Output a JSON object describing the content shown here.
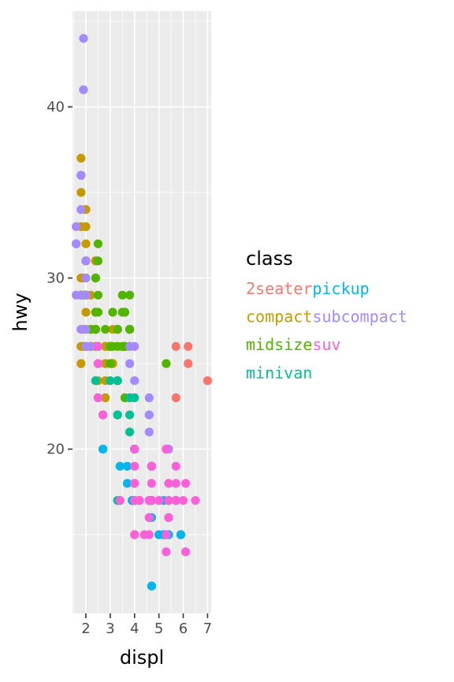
{
  "chart_data": {
    "type": "scatter",
    "title": "",
    "xlabel": "displ",
    "ylabel": "hwy",
    "xlim": [
      1.45,
      7.15
    ],
    "ylim": [
      10.4,
      45.6
    ],
    "x_ticks": [
      2,
      3,
      4,
      5,
      6,
      7
    ],
    "y_ticks": [
      20,
      30,
      40
    ],
    "grid": true,
    "legend": {
      "title": "class",
      "placement": "right",
      "layout": "two labels per line, no space between them",
      "lines": [
        [
          "2seater",
          "pickup"
        ],
        [
          "compact",
          "subcompact"
        ],
        [
          "midsize",
          "suv"
        ],
        [
          "minivan"
        ]
      ]
    },
    "colors": {
      "2seater": "#F8766D",
      "compact": "#C49A00",
      "midsize": "#53B400",
      "minivan": "#00C094",
      "pickup": "#00B6EB",
      "subcompact": "#A58AFF",
      "suv": "#FB61D7"
    },
    "series": [
      {
        "name": "2seater",
        "points": [
          [
            5.7,
            26
          ],
          [
            5.7,
            23
          ],
          [
            6.2,
            26
          ],
          [
            6.2,
            25
          ],
          [
            7.0,
            24
          ]
        ]
      },
      {
        "name": "compact",
        "points": [
          [
            1.8,
            29
          ],
          [
            1.8,
            29
          ],
          [
            2.0,
            31
          ],
          [
            2.0,
            30
          ],
          [
            2.8,
            26
          ],
          [
            2.8,
            26
          ],
          [
            3.1,
            27
          ],
          [
            1.8,
            26
          ],
          [
            1.8,
            25
          ],
          [
            2.0,
            28
          ],
          [
            2.0,
            27
          ],
          [
            2.8,
            25
          ],
          [
            2.8,
            25
          ],
          [
            3.1,
            25
          ],
          [
            3.1,
            25
          ],
          [
            2.2,
            26
          ],
          [
            2.2,
            27
          ],
          [
            2.4,
            31
          ],
          [
            2.4,
            31
          ],
          [
            3.0,
            26
          ],
          [
            3.0,
            26
          ],
          [
            3.3,
            27
          ],
          [
            1.8,
            29
          ],
          [
            1.8,
            29
          ],
          [
            1.8,
            29
          ],
          [
            1.8,
            30
          ],
          [
            2.0,
            33
          ],
          [
            1.9,
            30
          ],
          [
            1.9,
            29
          ],
          [
            2.0,
            29
          ],
          [
            2.0,
            29
          ],
          [
            2.0,
            29
          ],
          [
            2.0,
            29
          ],
          [
            2.5,
            24
          ],
          [
            2.5,
            25
          ],
          [
            2.8,
            23
          ],
          [
            2.8,
            24
          ],
          [
            2.2,
            26
          ],
          [
            2.2,
            29
          ],
          [
            2.4,
            27
          ],
          [
            2.4,
            31
          ],
          [
            3.0,
            26
          ],
          [
            3.0,
            26
          ],
          [
            3.3,
            26
          ],
          [
            3.3,
            27
          ],
          [
            2.2,
            27
          ],
          [
            2.4,
            26
          ],
          [
            2.0,
            26
          ],
          [
            1.9,
            27
          ],
          [
            1.9,
            26
          ],
          [
            1.8,
            37
          ],
          [
            1.8,
            35
          ],
          [
            2.0,
            29
          ],
          [
            2.0,
            29
          ],
          [
            2.0,
            32
          ],
          [
            1.8,
            33
          ],
          [
            1.8,
            36
          ],
          [
            2.0,
            34
          ]
        ]
      },
      {
        "name": "midsize",
        "points": [
          [
            2.4,
            27
          ],
          [
            3.0,
            25
          ],
          [
            3.3,
            26
          ],
          [
            2.4,
            30
          ],
          [
            3.0,
            26
          ],
          [
            3.3,
            24
          ],
          [
            3.8,
            27
          ],
          [
            3.8,
            26
          ],
          [
            3.1,
            28
          ],
          [
            3.8,
            27
          ],
          [
            3.8,
            29
          ],
          [
            3.8,
            27
          ],
          [
            5.3,
            25
          ],
          [
            2.4,
            27
          ],
          [
            2.4,
            30
          ],
          [
            3.1,
            26
          ],
          [
            3.5,
            29
          ],
          [
            3.6,
            26
          ],
          [
            2.4,
            27
          ],
          [
            2.4,
            28
          ],
          [
            2.5,
            31
          ],
          [
            2.5,
            32
          ],
          [
            3.3,
            27
          ],
          [
            3.3,
            27
          ],
          [
            3.5,
            28
          ],
          [
            3.5,
            26
          ],
          [
            2.2,
            26
          ],
          [
            2.2,
            27
          ],
          [
            2.4,
            28
          ],
          [
            2.4,
            27
          ],
          [
            3.0,
            26
          ],
          [
            3.0,
            26
          ],
          [
            3.5,
            26
          ],
          [
            2.5,
            28
          ],
          [
            2.5,
            29
          ],
          [
            2.8,
            27
          ],
          [
            3.6,
            26
          ],
          [
            3.6,
            23
          ],
          [
            3.6,
            28
          ],
          [
            1.8,
            29
          ],
          [
            2.0,
            31
          ]
        ]
      },
      {
        "name": "minivan",
        "points": [
          [
            2.4,
            24
          ],
          [
            3.0,
            24
          ],
          [
            3.3,
            22
          ],
          [
            3.3,
            22
          ],
          [
            3.3,
            24
          ],
          [
            3.3,
            24
          ],
          [
            3.3,
            17
          ],
          [
            3.8,
            22
          ],
          [
            3.8,
            21
          ],
          [
            3.8,
            23
          ],
          [
            4.0,
            23
          ]
        ]
      },
      {
        "name": "pickup",
        "points": [
          [
            3.7,
            19
          ],
          [
            3.7,
            18
          ],
          [
            3.9,
            17
          ],
          [
            3.9,
            17
          ],
          [
            4.7,
            19
          ],
          [
            4.7,
            19
          ],
          [
            4.7,
            12
          ],
          [
            5.2,
            17
          ],
          [
            5.2,
            15
          ],
          [
            5.7,
            17
          ],
          [
            5.9,
            15
          ],
          [
            4.7,
            17
          ],
          [
            4.7,
            16
          ],
          [
            4.7,
            12
          ],
          [
            5.2,
            15
          ],
          [
            5.7,
            17
          ],
          [
            5.9,
            15
          ],
          [
            4.6,
            17
          ],
          [
            5.4,
            15
          ],
          [
            5.4,
            17
          ],
          [
            4.0,
            20
          ],
          [
            4.0,
            20
          ],
          [
            4.0,
            18
          ],
          [
            4.0,
            17
          ],
          [
            4.6,
            16
          ],
          [
            5.0,
            15
          ],
          [
            2.7,
            20
          ],
          [
            2.7,
            20
          ],
          [
            2.7,
            22
          ],
          [
            3.4,
            17
          ],
          [
            3.4,
            19
          ],
          [
            4.0,
            18
          ],
          [
            4.0,
            20
          ]
        ]
      },
      {
        "name": "subcompact",
        "points": [
          [
            3.8,
            26
          ],
          [
            3.8,
            25
          ],
          [
            4.0,
            26
          ],
          [
            4.0,
            24
          ],
          [
            4.6,
            21
          ],
          [
            4.6,
            22
          ],
          [
            4.6,
            23
          ],
          [
            4.6,
            22
          ],
          [
            5.4,
            20
          ],
          [
            1.6,
            33
          ],
          [
            1.6,
            32
          ],
          [
            1.6,
            32
          ],
          [
            1.6,
            29
          ],
          [
            1.6,
            32
          ],
          [
            1.8,
            34
          ],
          [
            1.8,
            36
          ],
          [
            1.8,
            36
          ],
          [
            2.0,
            29
          ],
          [
            2.0,
            26
          ],
          [
            2.0,
            27
          ],
          [
            2.0,
            30
          ],
          [
            2.0,
            31
          ],
          [
            2.0,
            26
          ],
          [
            2.0,
            29
          ],
          [
            1.8,
            29
          ],
          [
            1.8,
            27
          ],
          [
            1.9,
            44
          ],
          [
            1.9,
            41
          ],
          [
            2.0,
            26
          ],
          [
            2.5,
            26
          ],
          [
            2.5,
            26
          ],
          [
            2.2,
            26
          ],
          [
            2.5,
            25
          ]
        ]
      },
      {
        "name": "suv",
        "points": [
          [
            5.3,
            20
          ],
          [
            5.3,
            15
          ],
          [
            5.3,
            20
          ],
          [
            5.7,
            17
          ],
          [
            6.0,
            17
          ],
          [
            5.7,
            17
          ],
          [
            5.7,
            19
          ],
          [
            6.5,
            17
          ],
          [
            5.3,
            14
          ],
          [
            5.3,
            15
          ],
          [
            5.7,
            17
          ],
          [
            4.7,
            19
          ],
          [
            4.7,
            17
          ],
          [
            4.7,
            17
          ],
          [
            4.7,
            18
          ],
          [
            5.7,
            18
          ],
          [
            6.1,
            18
          ],
          [
            4.0,
            18
          ],
          [
            4.2,
            17
          ],
          [
            4.4,
            15
          ],
          [
            4.6,
            17
          ],
          [
            5.4,
            16
          ],
          [
            5.4,
            17
          ],
          [
            5.4,
            18
          ],
          [
            4.0,
            17
          ],
          [
            4.0,
            15
          ],
          [
            4.6,
            16
          ],
          [
            5.0,
            17
          ],
          [
            4.2,
            17
          ],
          [
            4.2,
            17
          ],
          [
            4.6,
            17
          ],
          [
            4.6,
            17
          ],
          [
            5.4,
            17
          ],
          [
            5.4,
            16
          ],
          [
            4.0,
            19
          ],
          [
            4.7,
            17
          ],
          [
            4.7,
            17
          ],
          [
            4.7,
            19
          ],
          [
            4.7,
            19
          ],
          [
            5.7,
            17
          ],
          [
            6.1,
            14
          ],
          [
            2.5,
            26
          ],
          [
            2.5,
            23
          ],
          [
            2.5,
            25
          ],
          [
            2.5,
            23
          ],
          [
            4.0,
            20
          ],
          [
            4.7,
            19
          ],
          [
            4.0,
            15
          ],
          [
            4.0,
            17
          ],
          [
            4.6,
            15
          ],
          [
            5.0,
            17
          ],
          [
            2.7,
            22
          ],
          [
            2.7,
            22
          ],
          [
            2.7,
            22
          ],
          [
            3.4,
            17
          ],
          [
            4.0,
            18
          ],
          [
            4.7,
            17
          ]
        ]
      }
    ]
  }
}
